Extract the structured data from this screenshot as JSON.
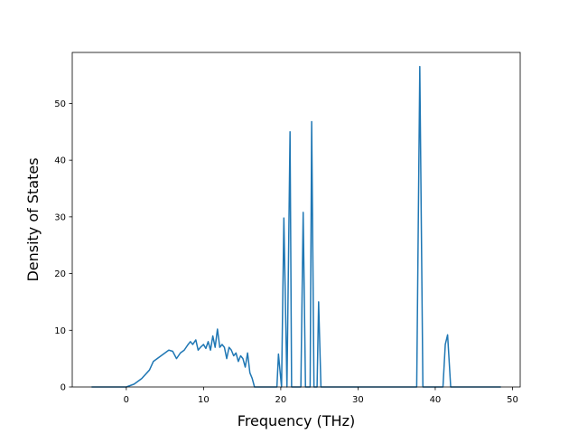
{
  "chart_data": {
    "type": "line",
    "title": "",
    "xlabel": "Frequency (THz)",
    "ylabel": "Density of States",
    "xlim": [
      -7.0,
      51.0
    ],
    "ylim": [
      0,
      59
    ],
    "xticks": [
      0,
      10,
      20,
      30,
      40,
      50
    ],
    "yticks": [
      0,
      10,
      20,
      30,
      40,
      50
    ],
    "grid": false,
    "legend": "none",
    "series": [
      {
        "name": "",
        "color": "#1f77b4",
        "x": [
          -4.5,
          -1.0,
          0.0,
          1.0,
          2.0,
          3.0,
          3.5,
          4.0,
          4.5,
          5.0,
          5.5,
          6.0,
          6.5,
          7.0,
          7.5,
          8.0,
          8.3,
          8.6,
          9.0,
          9.3,
          9.6,
          10.0,
          10.3,
          10.6,
          10.9,
          11.2,
          11.5,
          11.8,
          12.1,
          12.4,
          12.7,
          13.0,
          13.3,
          13.6,
          13.9,
          14.2,
          14.5,
          14.8,
          15.1,
          15.4,
          15.7,
          16.0,
          16.3,
          16.6,
          17.0,
          19.5,
          19.7,
          20.1,
          20.4,
          20.8,
          21.2,
          21.4,
          21.7,
          22.6,
          22.9,
          23.2,
          23.8,
          24.0,
          24.3,
          24.7,
          24.9,
          25.2,
          37.6,
          38.0,
          38.4,
          41.0,
          41.3,
          41.6,
          42.0,
          48.5
        ],
        "y": [
          0,
          0,
          0,
          0.5,
          1.5,
          3.0,
          4.5,
          5.0,
          5.5,
          6.0,
          6.5,
          6.3,
          5.0,
          6.0,
          6.5,
          7.5,
          8.0,
          7.5,
          8.3,
          6.5,
          7.0,
          7.5,
          6.8,
          8.0,
          6.5,
          9.0,
          7.0,
          10.2,
          7.0,
          7.5,
          7.0,
          5.0,
          7.0,
          6.5,
          5.5,
          6.0,
          4.5,
          5.5,
          5.0,
          3.5,
          6.0,
          2.5,
          1.5,
          0,
          0,
          0,
          5.8,
          0,
          29.8,
          0,
          45.0,
          0,
          0,
          0,
          30.8,
          0,
          0,
          46.8,
          0,
          0,
          15.0,
          0,
          0,
          56.5,
          0,
          0,
          7.5,
          9.2,
          0,
          0
        ]
      }
    ]
  }
}
